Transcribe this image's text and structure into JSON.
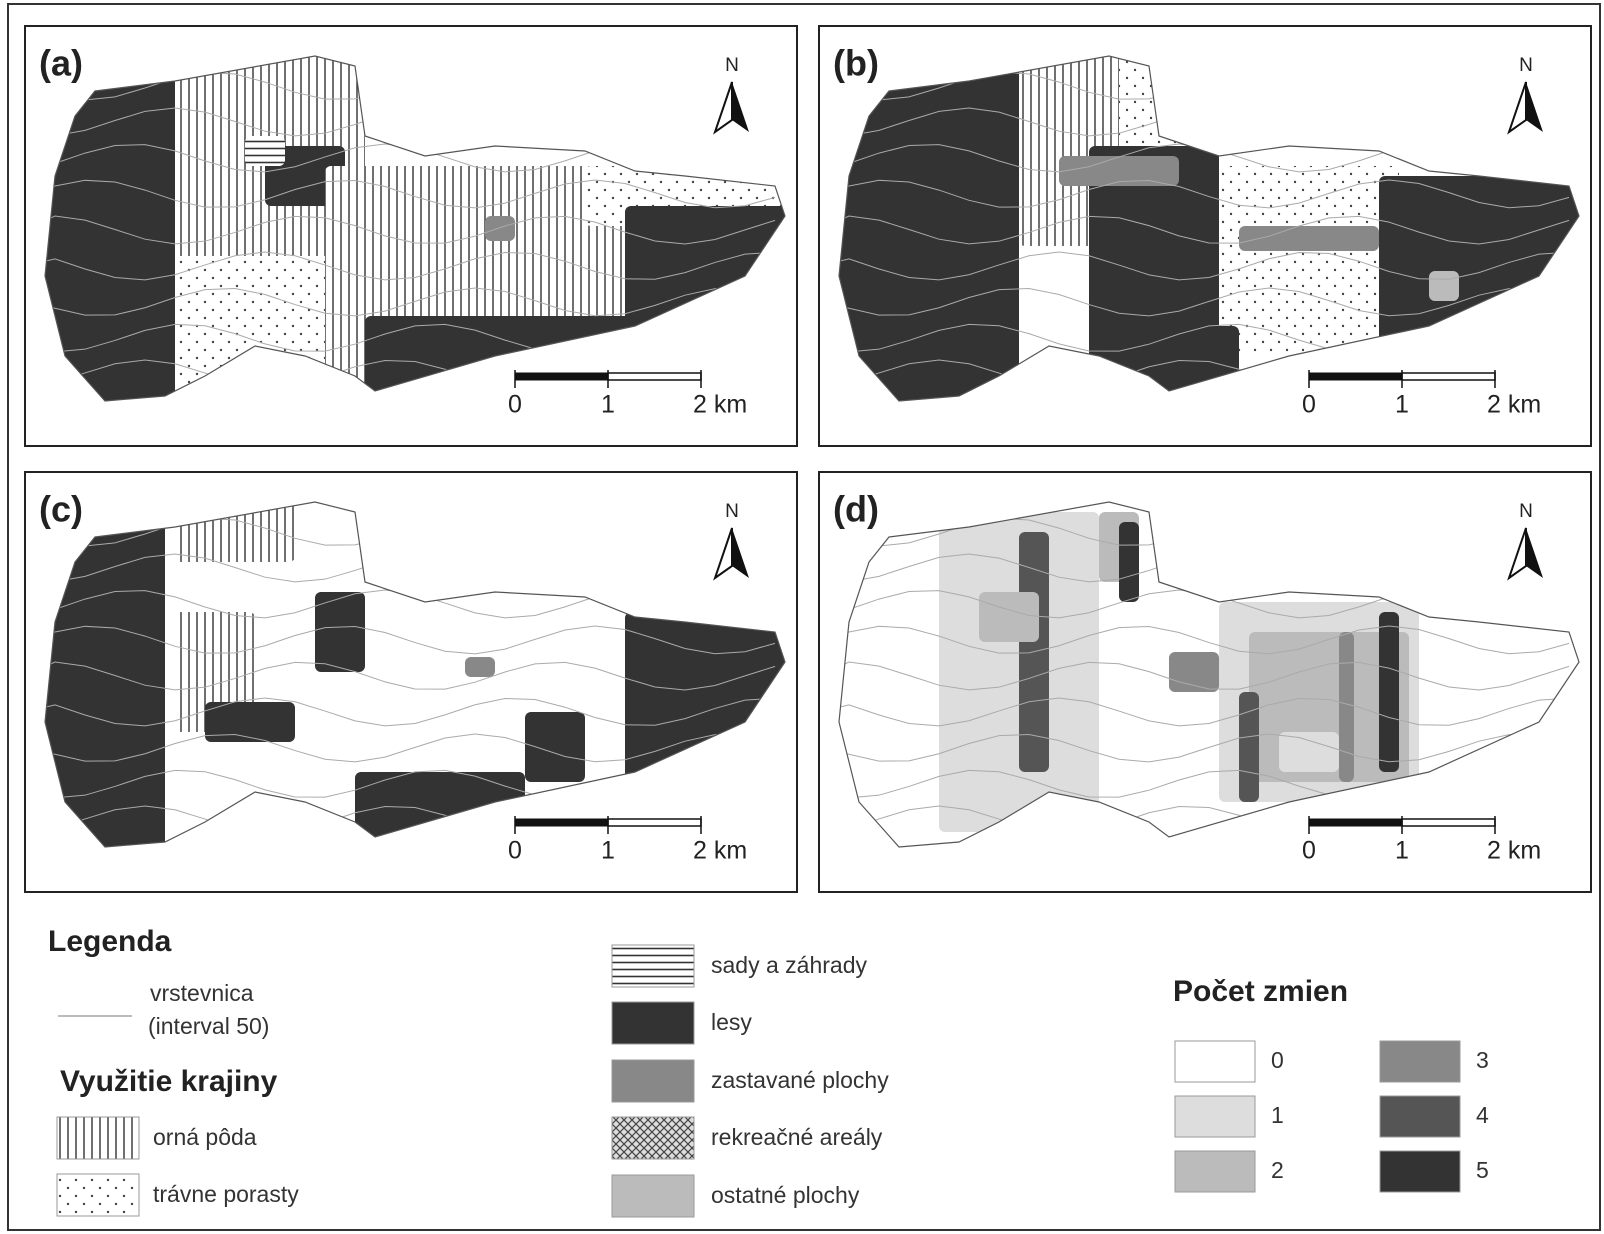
{
  "panels": [
    {
      "label": "(a)",
      "north": "N",
      "scale": [
        "0",
        "1",
        "2 km"
      ]
    },
    {
      "label": "(b)",
      "north": "N",
      "scale": [
        "0",
        "1",
        "2 km"
      ]
    },
    {
      "label": "(c)",
      "north": "N",
      "scale": [
        "0",
        "1",
        "2 km"
      ]
    },
    {
      "label": "(d)",
      "north": "N",
      "scale": [
        "0",
        "1",
        "2 km"
      ]
    }
  ],
  "legend": {
    "title": "Legenda",
    "contour": [
      "vrstevnica",
      "(interval 50)"
    ],
    "land_use_title": "Využitie krajiny",
    "land_use": [
      "orná pôda",
      "trávne porasty",
      "sady a záhrady",
      "lesy",
      "zastavané plochy",
      "rekreačné areály",
      "ostatné plochy"
    ],
    "changes_title": "Počet zmien",
    "changes": [
      "0",
      "1",
      "2",
      "3",
      "4",
      "5"
    ]
  }
}
